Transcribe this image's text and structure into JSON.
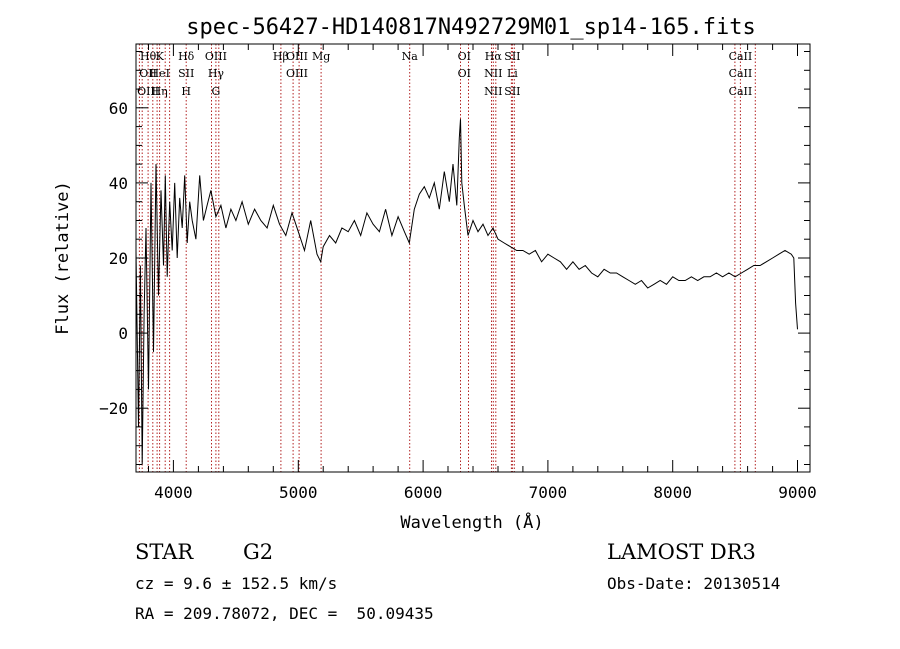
{
  "chart_data": {
    "type": "line",
    "title": "spec-56427-HD140817N492729M01_sp14-165.fits",
    "xlabel": "Wavelength (Å)",
    "ylabel": "Flux (relative)",
    "xlim": [
      3700,
      9100
    ],
    "ylim": [
      -37,
      77
    ],
    "x_ticks": [
      4000,
      5000,
      6000,
      7000,
      8000,
      9000
    ],
    "y_ticks": [
      -20,
      0,
      20,
      40,
      60
    ],
    "x_tick_labels": [
      "4000",
      "5000",
      "6000",
      "7000",
      "8000",
      "9000"
    ],
    "y_tick_labels": [
      "−20",
      "0",
      "20",
      "40",
      "60"
    ],
    "grid": false,
    "legend": "none",
    "series": [
      {
        "color": "#000000",
        "x": [
          3700,
          3720,
          3735,
          3750,
          3765,
          3780,
          3800,
          3820,
          3840,
          3860,
          3880,
          3900,
          3920,
          3935,
          3950,
          3970,
          3990,
          4010,
          4030,
          4050,
          4070,
          4090,
          4110,
          4130,
          4150,
          4180,
          4210,
          4240,
          4270,
          4300,
          4340,
          4380,
          4420,
          4460,
          4500,
          4550,
          4600,
          4650,
          4700,
          4750,
          4800,
          4850,
          4900,
          4950,
          5000,
          5050,
          5100,
          5150,
          5180,
          5200,
          5250,
          5300,
          5350,
          5400,
          5450,
          5500,
          5550,
          5600,
          5650,
          5700,
          5750,
          5800,
          5850,
          5890,
          5930,
          5970,
          6010,
          6050,
          6090,
          6130,
          6170,
          6210,
          6240,
          6270,
          6290,
          6300,
          6310,
          6330,
          6360,
          6400,
          6440,
          6480,
          6520,
          6560,
          6600,
          6650,
          6700,
          6750,
          6800,
          6850,
          6900,
          6950,
          7000,
          7050,
          7100,
          7150,
          7200,
          7250,
          7300,
          7350,
          7400,
          7450,
          7500,
          7550,
          7600,
          7650,
          7700,
          7750,
          7800,
          7850,
          7900,
          7950,
          8000,
          8050,
          8100,
          8150,
          8200,
          8250,
          8300,
          8350,
          8400,
          8450,
          8500,
          8550,
          8600,
          8650,
          8700,
          8750,
          8800,
          8850,
          8900,
          8950,
          8970,
          8985,
          9000
        ],
        "values": [
          22,
          -25,
          18,
          -35,
          5,
          28,
          -15,
          40,
          -5,
          45,
          10,
          38,
          18,
          42,
          15,
          35,
          22,
          40,
          20,
          36,
          28,
          42,
          24,
          35,
          30,
          25,
          42,
          30,
          34,
          38,
          31,
          34,
          28,
          33,
          30,
          35,
          29,
          33,
          30,
          28,
          34,
          29,
          26,
          32,
          27,
          22,
          30,
          21,
          19,
          23,
          26,
          24,
          28,
          27,
          30,
          26,
          32,
          29,
          27,
          33,
          26,
          31,
          27,
          24,
          33,
          37,
          39,
          36,
          40,
          33,
          43,
          35,
          45,
          34,
          52,
          57,
          40,
          34,
          26,
          30,
          27,
          29,
          26,
          28,
          25,
          24,
          23,
          22,
          22,
          21,
          22,
          19,
          21,
          20,
          19,
          17,
          19,
          17,
          18,
          16,
          15,
          17,
          16,
          16,
          15,
          14,
          13,
          14,
          12,
          13,
          14,
          13,
          15,
          14,
          14,
          15,
          14,
          15,
          15,
          16,
          15,
          16,
          15,
          16,
          17,
          18,
          18,
          19,
          20,
          21,
          22,
          21,
          20,
          8,
          1
        ]
      }
    ],
    "annotations": [
      {
        "lines": [
          "H&#952;",
          "OII",
          "OIII"
        ],
        "text": [
          "Hθ",
          "OII",
          "OIII"
        ],
        "x": 3797
      },
      {
        "text": [
          "K",
          "HeI",
          "Hη"
        ],
        "x": 3890
      },
      {
        "text": [
          "Hδ",
          "SII",
          "H"
        ],
        "x": 4102
      },
      {
        "text": [
          "OIII",
          "Hγ",
          "G"
        ],
        "x": 4340
      },
      {
        "text": [
          "Hβ"
        ],
        "x": 4861
      },
      {
        "text": [
          "OIII",
          "OIII"
        ],
        "x": 4990
      },
      {
        "text": [
          "Mg"
        ],
        "x": 5183
      },
      {
        "text": [
          "Na"
        ],
        "x": 5893
      },
      {
        "text": [
          "OI",
          "OI"
        ],
        "x": 6330
      },
      {
        "text": [
          "Hα",
          "NII",
          "NII"
        ],
        "x": 6563
      },
      {
        "text": [
          "SII",
          "Li",
          "SII"
        ],
        "x": 6716
      },
      {
        "text": [
          "CaII",
          "CaII",
          "CaII"
        ],
        "x": 8542
      }
    ],
    "line_markers": [
      3727,
      3750,
      3797,
      3835,
      3869,
      3889,
      3934,
      3969,
      4102,
      4305,
      4340,
      4363,
      4861,
      4959,
      5007,
      5183,
      5893,
      6300,
      6364,
      6548,
      6563,
      6583,
      6708,
      6716,
      6731,
      8498,
      8542,
      8662
    ]
  },
  "footer": {
    "object": "STAR",
    "subclass": "G2",
    "survey": "LAMOST DR3",
    "cz": "cz = 9.6 ± 152.5 km/s",
    "obs_date": "Obs-Date: 20130514",
    "radec": "RA = 209.78072, DEC =  50.09435"
  }
}
